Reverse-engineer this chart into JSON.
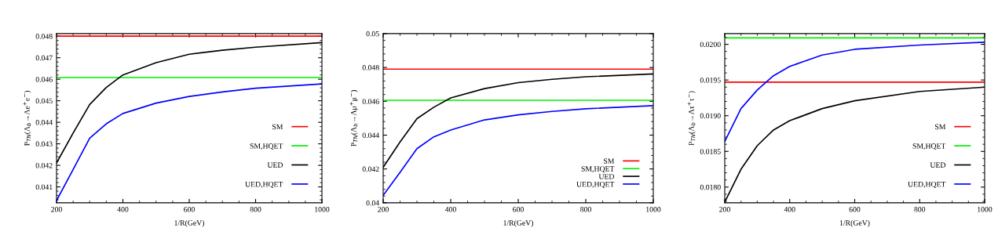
{
  "chart_data": [
    {
      "type": "line",
      "xlabel": "1/R(GeV)",
      "ylabel": "P$_{TN}$(Λ$_{b}$→Λe$^{+}$e$^{−}$)",
      "xlim": [
        200,
        1000
      ],
      "xticks": [
        200,
        400,
        600,
        800,
        1000
      ],
      "ylim": [
        0.04026,
        0.04812
      ],
      "yticks": [
        0.041,
        0.042,
        0.043,
        0.044,
        0.045,
        0.046,
        0.047,
        0.048
      ],
      "legend": "bottom right",
      "grid": false,
      "series": [
        {
          "name": "SM",
          "color": "#ff0000",
          "x": [
            200,
            1000
          ],
          "values": [
            0.048,
            0.048
          ]
        },
        {
          "name": "SM,HQET",
          "color": "#00ee00",
          "x": [
            200,
            1000
          ],
          "values": [
            0.04608,
            0.04608
          ]
        },
        {
          "name": "UED",
          "color": "#000000",
          "x": [
            200,
            250,
            300,
            350,
            400,
            500,
            600,
            700,
            800,
            1000
          ],
          "values": [
            0.04211,
            0.0435,
            0.04483,
            0.04562,
            0.0462,
            0.04677,
            0.04716,
            0.04735,
            0.04749,
            0.0477
          ]
        },
        {
          "name": "UED,HQET",
          "color": "#0000ff",
          "x": [
            200,
            250,
            300,
            350,
            400,
            500,
            600,
            700,
            800,
            1000
          ],
          "values": [
            0.04036,
            0.04181,
            0.04326,
            0.04393,
            0.04441,
            0.04489,
            0.0452,
            0.04541,
            0.04558,
            0.04578
          ]
        }
      ]
    },
    {
      "type": "line",
      "xlabel": "1/R(GeV)",
      "ylabel": "P$_{TN}$(Λ$_{b}$→Λμ$^{+}$μ$^{−}$)",
      "xlim": [
        200,
        1000
      ],
      "xticks": [
        200,
        400,
        600,
        800,
        1000
      ],
      "ylim": [
        0.04,
        0.05
      ],
      "yticks": [
        0.04,
        0.042,
        0.044,
        0.046,
        0.048,
        0.05
      ],
      "legend": "bottom right",
      "grid": false,
      "series": [
        {
          "name": "SM",
          "color": "#ff0000",
          "x": [
            200,
            1000
          ],
          "values": [
            0.0479,
            0.0479
          ]
        },
        {
          "name": "SM,HQET",
          "color": "#00ee00",
          "x": [
            200,
            1000
          ],
          "values": [
            0.04606,
            0.04606
          ]
        },
        {
          "name": "UED",
          "color": "#000000",
          "x": [
            200,
            250,
            300,
            350,
            400,
            500,
            600,
            700,
            800,
            1000
          ],
          "values": [
            0.0421,
            0.0436,
            0.04497,
            0.04565,
            0.0462,
            0.04675,
            0.0471,
            0.0473,
            0.04745,
            0.04762
          ]
        },
        {
          "name": "UED,HQET",
          "color": "#0000ff",
          "x": [
            200,
            250,
            300,
            350,
            400,
            500,
            600,
            700,
            800,
            1000
          ],
          "values": [
            0.04044,
            0.0418,
            0.0432,
            0.0439,
            0.0443,
            0.0449,
            0.0452,
            0.0454,
            0.04556,
            0.04574
          ]
        }
      ]
    },
    {
      "type": "line",
      "xlabel": "1/R(GeV)",
      "ylabel": "P$_{TN}$(Λ$_{b}$→Λτ$^{+}$τ$^{−}$)",
      "xlim": [
        200,
        1000
      ],
      "xticks": [
        200,
        400,
        600,
        800,
        1000
      ],
      "ylim": [
        0.01778,
        0.02015
      ],
      "yticks": [
        {
          "value": 0.018,
          "label": "0.0180"
        },
        {
          "value": 0.0185,
          "label": "0.0185"
        },
        {
          "value": 0.019,
          "label": "0.0190"
        },
        {
          "value": 0.0195,
          "label": "0.0195"
        },
        {
          "value": 0.02,
          "label": "0.0200"
        }
      ],
      "legend": "bottom right",
      "grid": false,
      "series": [
        {
          "name": "SM",
          "color": "#ff0000",
          "x": [
            200,
            1000
          ],
          "values": [
            0.01947,
            0.01947
          ]
        },
        {
          "name": "SM,HQET",
          "color": "#00ee00",
          "x": [
            200,
            1000
          ],
          "values": [
            0.02009,
            0.02009
          ]
        },
        {
          "name": "UED",
          "color": "#000000",
          "x": [
            200,
            250,
            300,
            350,
            400,
            500,
            600,
            800,
            1000
          ],
          "values": [
            0.01779,
            0.01825,
            0.01858,
            0.0188,
            0.01893,
            0.0191,
            0.01921,
            0.01934,
            0.0194
          ]
        },
        {
          "name": "UED,HQET",
          "color": "#0000ff",
          "x": [
            200,
            250,
            300,
            350,
            400,
            500,
            600,
            800,
            1000
          ],
          "values": [
            0.01864,
            0.0191,
            0.01936,
            0.01956,
            0.01969,
            0.01985,
            0.01993,
            0.01999,
            0.02003
          ]
        }
      ]
    }
  ]
}
